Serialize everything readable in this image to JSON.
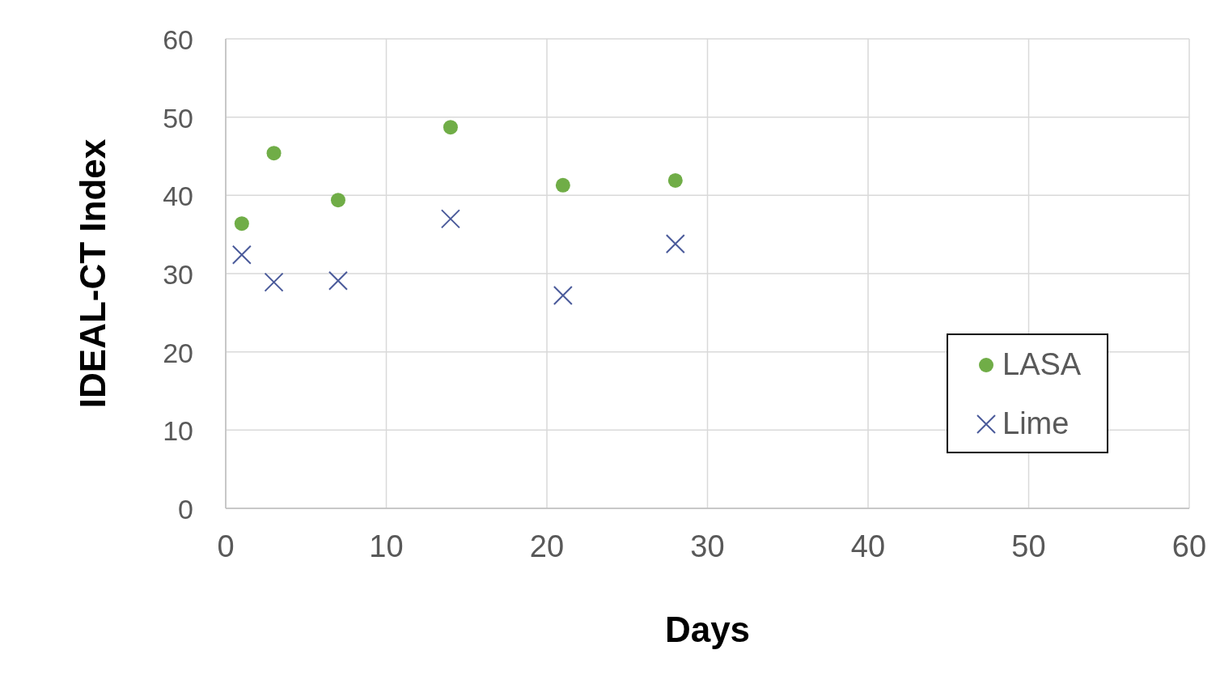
{
  "chart_data": {
    "type": "scatter",
    "xlabel": "Days",
    "ylabel": "IDEAL-CT Index",
    "xlim": [
      0,
      60
    ],
    "xticks": [
      0,
      10,
      20,
      30,
      40,
      50,
      60
    ],
    "ylim": [
      0,
      60
    ],
    "yticks": [
      0,
      10,
      20,
      30,
      40,
      50,
      60
    ],
    "grid": true,
    "legend": "right",
    "series": [
      {
        "name": "LASA",
        "color": "#70ad47",
        "marker": "circle",
        "x": [
          1,
          3,
          7,
          14,
          21,
          28
        ],
        "values": [
          36.4,
          45.4,
          39.4,
          48.7,
          41.3,
          41.9
        ]
      },
      {
        "name": "Lime",
        "color": "#4a5a9a",
        "marker": "cross",
        "x": [
          1,
          3,
          7,
          14,
          21,
          28
        ],
        "values": [
          32.4,
          28.9,
          29.1,
          37.0,
          27.2,
          33.8
        ]
      }
    ]
  }
}
